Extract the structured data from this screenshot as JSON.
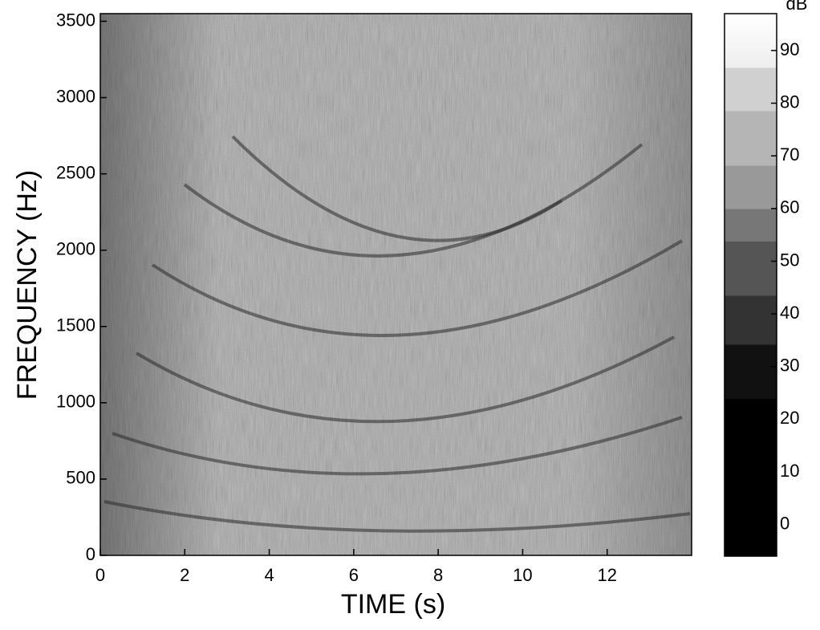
{
  "chart_data": {
    "type": "spectrogram",
    "xlabel": "TIME (s)",
    "ylabel": "FREQUENCY (Hz)",
    "xlim": [
      0,
      14
    ],
    "xticks": [
      0,
      2,
      4,
      6,
      8,
      10,
      12
    ],
    "ylim": [
      0,
      3550
    ],
    "yticks": [
      0,
      500,
      1000,
      1500,
      2000,
      2500,
      3000,
      3500
    ],
    "colorbar": {
      "label": "dB",
      "lim": [
        -6,
        97
      ],
      "ticks": [
        0,
        10,
        20,
        30,
        40,
        50,
        60,
        70,
        80,
        90
      ]
    }
  }
}
